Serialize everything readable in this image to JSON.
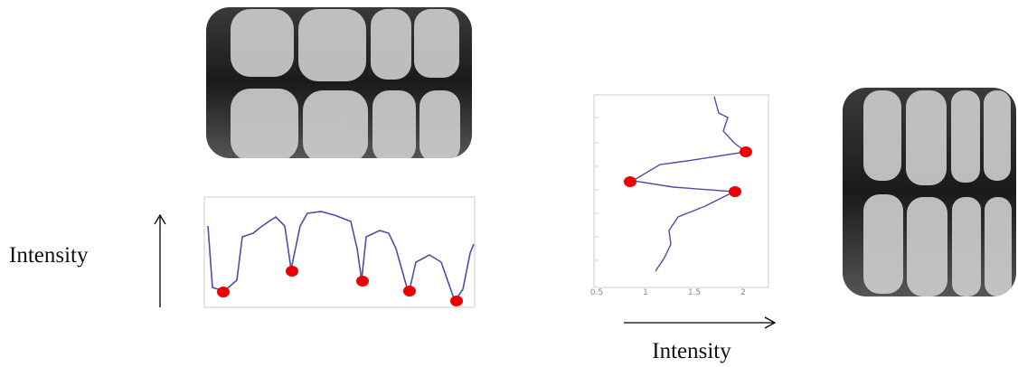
{
  "left_axis_label": "Intensity",
  "bottom_axis_label": "Intensity",
  "profile_plot": {
    "xticks": [
      0.5,
      1,
      1.5,
      2
    ]
  }
}
